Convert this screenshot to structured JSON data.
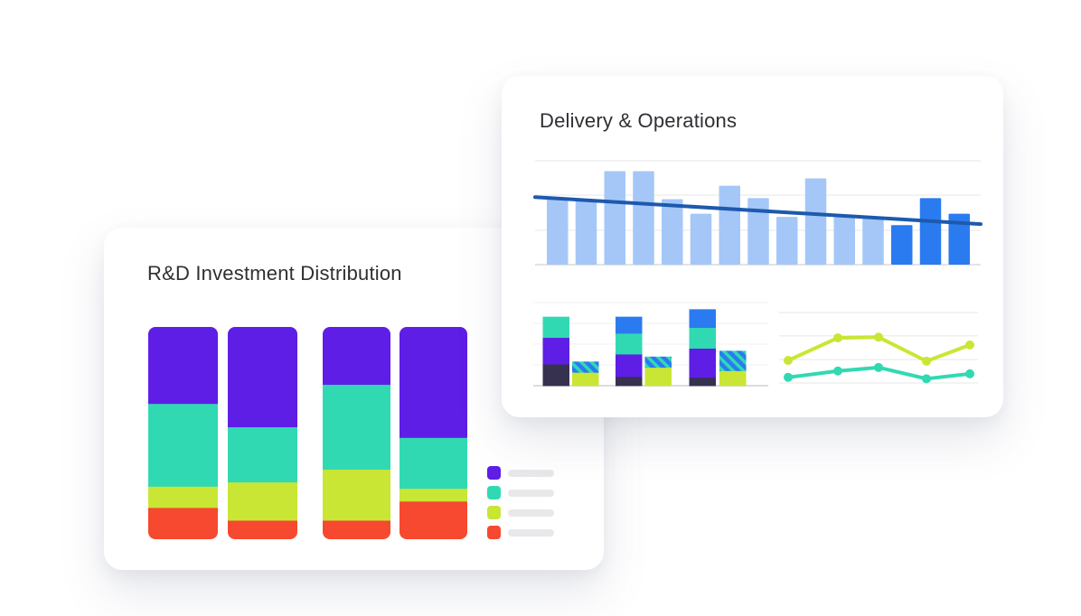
{
  "page": {
    "background": "#ffffff"
  },
  "colors": {
    "purple": "#5E1EE6",
    "teal": "#31D9B2",
    "yellow": "#C9E634",
    "red": "#F6492F",
    "navy": "#373150",
    "blue": "#2B7BF0",
    "light_blue": "#A4C7F8",
    "trend": "#1D59AE",
    "grid": "#EFEFF1",
    "grid_faint": "#F2F2F4",
    "axis": "#E2E2E7",
    "axis_dark": "#DCDCE1",
    "legend_placeholder": "#E8E8EB",
    "title_text": "#2E3033"
  },
  "cards": {
    "rd": {
      "title": "R&D Investment Distribution",
      "legend": [
        {
          "name": "purple",
          "color": "#5E1EE6"
        },
        {
          "name": "teal",
          "color": "#31D9B2"
        },
        {
          "name": "yellow",
          "color": "#C9E634"
        },
        {
          "name": "red",
          "color": "#F6492F"
        }
      ]
    },
    "delivery": {
      "title": "Delivery & Operations"
    }
  },
  "chart_data": [
    {
      "id": "rd-stacked",
      "type": "bar",
      "stacked": true,
      "percent_of_total": true,
      "title": "R&D Investment Distribution",
      "categories": [
        "bar-1",
        "bar-2",
        "bar-3",
        "bar-4"
      ],
      "series": [
        {
          "name": "purple",
          "color": "#5E1EE6",
          "values": [
            36,
            47,
            27,
            52
          ]
        },
        {
          "name": "teal",
          "color": "#31D9B2",
          "values": [
            39,
            26,
            40,
            24
          ]
        },
        {
          "name": "yellow",
          "color": "#C9E634",
          "values": [
            10,
            18,
            24,
            6
          ]
        },
        {
          "name": "red",
          "color": "#F6492F",
          "values": [
            15,
            9,
            9,
            18
          ]
        }
      ],
      "ylim": [
        0,
        100
      ],
      "grid": false,
      "axis_labels": false,
      "legend_position": "right"
    },
    {
      "id": "delivery-trend-bars",
      "type": "bar",
      "title": "Delivery & Operations",
      "values": [
        63,
        61,
        90,
        90,
        63,
        49,
        76,
        64,
        46,
        83,
        48,
        46,
        38,
        64,
        49
      ],
      "highlight_from_index": 12,
      "ylim": [
        0,
        100
      ],
      "grid": true,
      "gridline_values": [
        100,
        67,
        33,
        0
      ],
      "trendline": {
        "start_value": 65,
        "end_value": 39
      }
    },
    {
      "id": "delivery-stacked-mini",
      "type": "bar",
      "stacked": true,
      "ylim": [
        0,
        100
      ],
      "grid": true,
      "gridline_values": [
        100,
        75,
        50,
        25,
        0
      ],
      "groups": [
        {
          "main": [
            {
              "series": "navy",
              "value": 26
            },
            {
              "series": "purple",
              "value": 32
            },
            {
              "series": "teal",
              "value": 25
            }
          ],
          "secondary": [
            {
              "series": "yellow",
              "value": 16
            },
            {
              "series": "hatch",
              "value": 13
            }
          ]
        },
        {
          "main": [
            {
              "series": "navy",
              "value": 11
            },
            {
              "series": "purple",
              "value": 27
            },
            {
              "series": "teal",
              "value": 25
            },
            {
              "series": "blue",
              "value": 20
            }
          ],
          "secondary": [
            {
              "series": "yellow",
              "value": 22
            },
            {
              "series": "hatch",
              "value": 13
            }
          ]
        },
        {
          "main": [
            {
              "series": "navy",
              "value": 10
            },
            {
              "series": "purple",
              "value": 35
            },
            {
              "series": "teal",
              "value": 25
            },
            {
              "series": "blue",
              "value": 22
            }
          ],
          "secondary": [
            {
              "series": "yellow",
              "value": 18
            },
            {
              "series": "hatch",
              "value": 24
            }
          ]
        }
      ]
    },
    {
      "id": "delivery-lines",
      "type": "line",
      "ylim": [
        0,
        100
      ],
      "grid": true,
      "gridline_values": [
        100,
        67,
        33,
        0
      ],
      "series": [
        {
          "name": "yellow",
          "color": "#C9E634",
          "values": [
            32,
            64,
            65,
            31,
            54
          ]
        },
        {
          "name": "teal",
          "color": "#31D9B2",
          "values": [
            8,
            17,
            22,
            6,
            13
          ]
        }
      ]
    }
  ]
}
